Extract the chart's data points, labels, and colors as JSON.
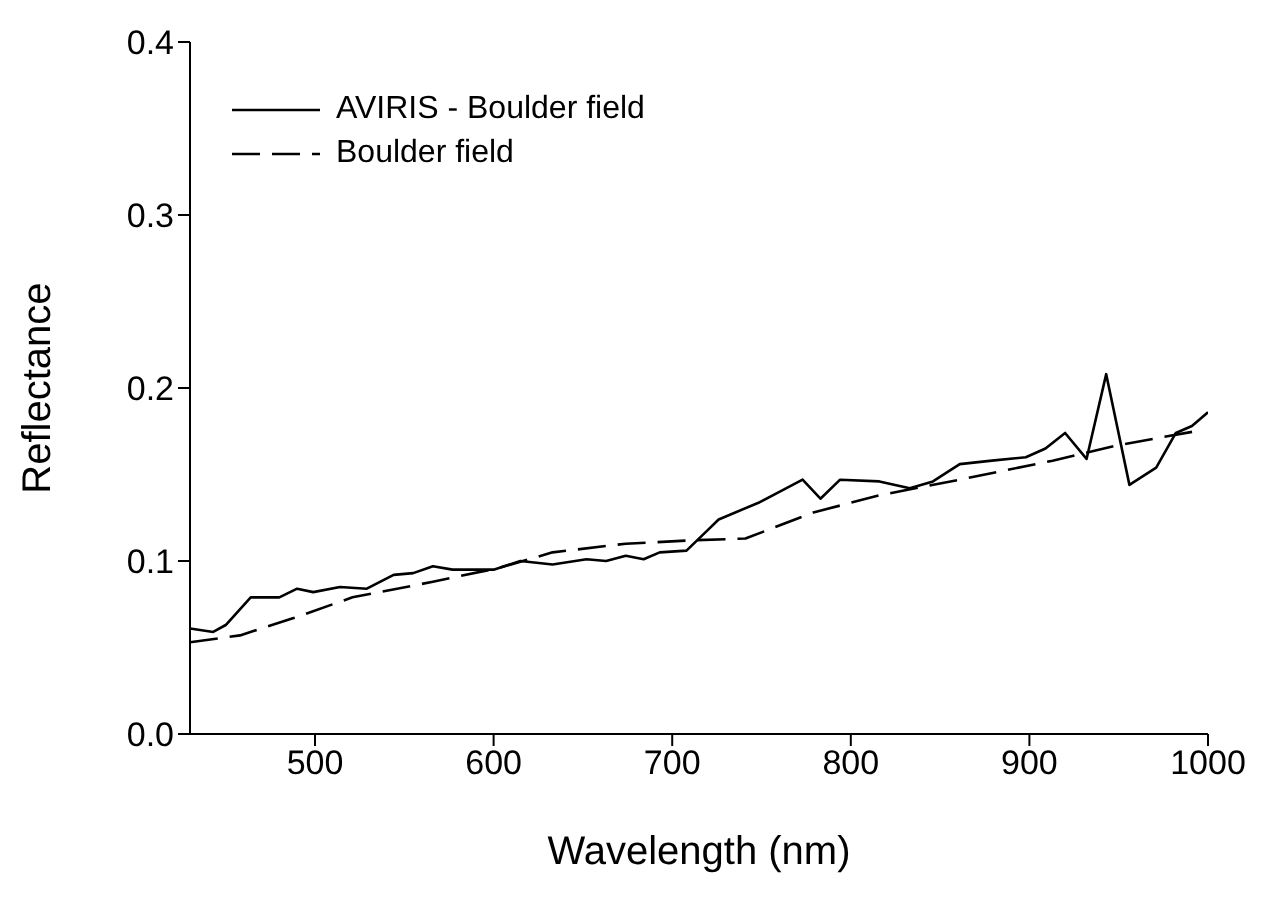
{
  "chart_data": {
    "type": "line",
    "xlabel": "Wavelength (nm)",
    "ylabel": "Reflectance",
    "xlim": [
      430,
      1000
    ],
    "xticks": [
      500,
      600,
      700,
      800,
      900,
      1000
    ],
    "ylim": [
      0,
      0.4
    ],
    "yticks": [
      {
        "value": 0,
        "label": "0.0"
      },
      {
        "value": 0.1,
        "label": "0.1"
      },
      {
        "value": 0.2,
        "label": "0.2"
      },
      {
        "value": 0.3,
        "label": "0.3"
      },
      {
        "value": 0.4,
        "label": "0.4"
      }
    ],
    "legend": "top left",
    "marker": "none",
    "series": [
      {
        "name": "AVIRIS - Boulder field",
        "color": "#000000",
        "line_style": "solid",
        "x": [
          430,
          443,
          450,
          464,
          480,
          490,
          499,
          514,
          529,
          544,
          555,
          566,
          577,
          600,
          615,
          633,
          652,
          663,
          674,
          684,
          693,
          708,
          719,
          726,
          749,
          760,
          773,
          783,
          794,
          816,
          833,
          846,
          861,
          879,
          898,
          909,
          920,
          932,
          943,
          956,
          971,
          982,
          991,
          1000
        ],
        "values": [
          0.061,
          0.059,
          0.063,
          0.079,
          0.079,
          0.084,
          0.082,
          0.085,
          0.084,
          0.092,
          0.093,
          0.097,
          0.095,
          0.095,
          0.1,
          0.098,
          0.101,
          0.1,
          0.103,
          0.101,
          0.105,
          0.106,
          0.117,
          0.124,
          0.134,
          0.14,
          0.147,
          0.136,
          0.147,
          0.146,
          0.142,
          0.146,
          0.156,
          0.158,
          0.16,
          0.165,
          0.174,
          0.159,
          0.208,
          0.144,
          0.154,
          0.174,
          0.178,
          0.186
        ]
      },
      {
        "name": "Boulder field",
        "color": "#000000",
        "line_style": "dashed",
        "x": [
          430,
          458,
          488,
          521,
          566,
          603,
          633,
          674,
          712,
          741,
          779,
          816,
          861,
          913,
          950,
          993
        ],
        "values": [
          0.053,
          0.057,
          0.067,
          0.079,
          0.088,
          0.096,
          0.105,
          0.11,
          0.112,
          0.113,
          0.128,
          0.138,
          0.147,
          0.158,
          0.167,
          0.175
        ]
      }
    ]
  }
}
